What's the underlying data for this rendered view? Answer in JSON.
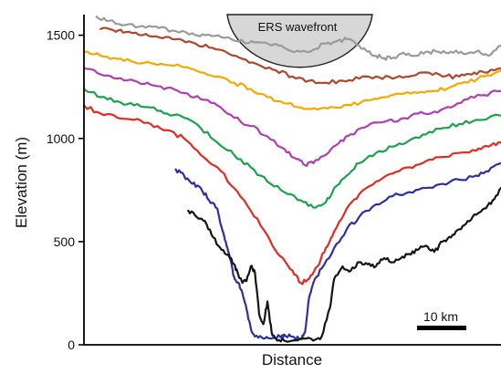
{
  "chart_data": {
    "type": "line",
    "title": "",
    "xlabel": "Distance",
    "ylabel": "Elevation (m)",
    "yticks": [
      {
        "value": 0,
        "label": "0"
      },
      {
        "value": 500,
        "label": "500"
      },
      {
        "value": 1000,
        "label": "1000"
      },
      {
        "value": 1500,
        "label": "1500"
      }
    ],
    "ylim": [
      0,
      1600
    ],
    "xlim": [
      0,
      100
    ],
    "x_tick_labels": [],
    "grid": false,
    "legend": "none",
    "annotations": {
      "wavefront_label": "ERS wavefront",
      "scale_bar_label": "10 km",
      "scale_bar_km": 10
    },
    "series": [
      {
        "color": "#9a9a9a",
        "points": [
          [
            3,
            1590
          ],
          [
            6,
            1570
          ],
          [
            10,
            1550
          ],
          [
            14,
            1545
          ],
          [
            18,
            1535
          ],
          [
            22,
            1520
          ],
          [
            26,
            1510
          ],
          [
            29,
            1500
          ],
          [
            33,
            1490
          ],
          [
            37,
            1470
          ],
          [
            41,
            1465
          ],
          [
            45,
            1450
          ],
          [
            48,
            1440
          ],
          [
            52,
            1420
          ],
          [
            55,
            1430
          ],
          [
            58,
            1460
          ],
          [
            61,
            1475
          ],
          [
            63,
            1480
          ],
          [
            66,
            1450
          ],
          [
            68,
            1420
          ],
          [
            70,
            1400
          ],
          [
            72,
            1390
          ],
          [
            74,
            1390
          ],
          [
            76,
            1410
          ],
          [
            79,
            1400
          ],
          [
            82,
            1420
          ],
          [
            85,
            1420
          ],
          [
            88,
            1420
          ],
          [
            91,
            1410
          ],
          [
            94,
            1420
          ],
          [
            97,
            1400
          ],
          [
            100,
            1450
          ]
        ]
      },
      {
        "color": "#b0462a",
        "points": [
          [
            4,
            1530
          ],
          [
            7,
            1525
          ],
          [
            10,
            1515
          ],
          [
            14,
            1500
          ],
          [
            18,
            1490
          ],
          [
            22,
            1480
          ],
          [
            26,
            1465
          ],
          [
            30,
            1440
          ],
          [
            34,
            1420
          ],
          [
            38,
            1385
          ],
          [
            42,
            1355
          ],
          [
            46,
            1330
          ],
          [
            50,
            1300
          ],
          [
            54,
            1280
          ],
          [
            58,
            1270
          ],
          [
            62,
            1280
          ],
          [
            66,
            1290
          ],
          [
            70,
            1300
          ],
          [
            74,
            1290
          ],
          [
            78,
            1300
          ],
          [
            82,
            1320
          ],
          [
            86,
            1300
          ],
          [
            90,
            1300
          ],
          [
            93,
            1310
          ],
          [
            96,
            1320
          ],
          [
            100,
            1340
          ]
        ]
      },
      {
        "color": "#f5a800",
        "points": [
          [
            0,
            1420
          ],
          [
            4,
            1400
          ],
          [
            8,
            1385
          ],
          [
            12,
            1370
          ],
          [
            16,
            1365
          ],
          [
            20,
            1355
          ],
          [
            24,
            1345
          ],
          [
            28,
            1320
          ],
          [
            32,
            1300
          ],
          [
            36,
            1270
          ],
          [
            40,
            1240
          ],
          [
            44,
            1200
          ],
          [
            48,
            1170
          ],
          [
            52,
            1150
          ],
          [
            56,
            1140
          ],
          [
            60,
            1150
          ],
          [
            64,
            1160
          ],
          [
            68,
            1185
          ],
          [
            72,
            1200
          ],
          [
            76,
            1215
          ],
          [
            80,
            1220
          ],
          [
            84,
            1230
          ],
          [
            88,
            1250
          ],
          [
            92,
            1270
          ],
          [
            96,
            1300
          ],
          [
            100,
            1330
          ]
        ]
      },
      {
        "color": "#b13db2",
        "points": [
          [
            0,
            1340
          ],
          [
            4,
            1310
          ],
          [
            8,
            1290
          ],
          [
            12,
            1280
          ],
          [
            16,
            1260
          ],
          [
            20,
            1245
          ],
          [
            24,
            1220
          ],
          [
            28,
            1190
          ],
          [
            32,
            1160
          ],
          [
            36,
            1100
          ],
          [
            40,
            1060
          ],
          [
            44,
            1010
          ],
          [
            48,
            950
          ],
          [
            51,
            900
          ],
          [
            53,
            870
          ],
          [
            55,
            880
          ],
          [
            58,
            920
          ],
          [
            61,
            975
          ],
          [
            64,
            1020
          ],
          [
            68,
            1060
          ],
          [
            72,
            1080
          ],
          [
            76,
            1095
          ],
          [
            80,
            1120
          ],
          [
            84,
            1130
          ],
          [
            88,
            1150
          ],
          [
            92,
            1190
          ],
          [
            96,
            1210
          ],
          [
            100,
            1230
          ]
        ]
      },
      {
        "color": "#1aa34a",
        "points": [
          [
            0,
            1240
          ],
          [
            4,
            1200
          ],
          [
            8,
            1180
          ],
          [
            12,
            1160
          ],
          [
            16,
            1150
          ],
          [
            20,
            1120
          ],
          [
            24,
            1100
          ],
          [
            28,
            1050
          ],
          [
            32,
            980
          ],
          [
            36,
            920
          ],
          [
            40,
            860
          ],
          [
            44,
            790
          ],
          [
            48,
            740
          ],
          [
            52,
            700
          ],
          [
            55,
            665
          ],
          [
            58,
            690
          ],
          [
            60,
            760
          ],
          [
            63,
            820
          ],
          [
            66,
            880
          ],
          [
            70,
            930
          ],
          [
            74,
            960
          ],
          [
            78,
            990
          ],
          [
            82,
            1020
          ],
          [
            86,
            1050
          ],
          [
            90,
            1070
          ],
          [
            94,
            1090
          ],
          [
            100,
            1110
          ]
        ]
      },
      {
        "color": "#e52a1f",
        "points": [
          [
            0,
            1160
          ],
          [
            4,
            1120
          ],
          [
            8,
            1100
          ],
          [
            12,
            1090
          ],
          [
            16,
            1070
          ],
          [
            20,
            1040
          ],
          [
            24,
            1000
          ],
          [
            28,
            920
          ],
          [
            32,
            860
          ],
          [
            36,
            760
          ],
          [
            40,
            650
          ],
          [
            44,
            530
          ],
          [
            47,
            430
          ],
          [
            50,
            360
          ],
          [
            52,
            300
          ],
          [
            54,
            320
          ],
          [
            56,
            380
          ],
          [
            58,
            470
          ],
          [
            60,
            550
          ],
          [
            63,
            660
          ],
          [
            66,
            730
          ],
          [
            70,
            790
          ],
          [
            74,
            830
          ],
          [
            78,
            860
          ],
          [
            82,
            890
          ],
          [
            86,
            910
          ],
          [
            90,
            930
          ],
          [
            94,
            940
          ],
          [
            97,
            960
          ],
          [
            100,
            980
          ]
        ]
      },
      {
        "color": "#2e2ea8",
        "points": [
          [
            22,
            850
          ],
          [
            24,
            820
          ],
          [
            26,
            780
          ],
          [
            28,
            760
          ],
          [
            30,
            700
          ],
          [
            32,
            660
          ],
          [
            33,
            570
          ],
          [
            34,
            500
          ],
          [
            35,
            420
          ],
          [
            36,
            330
          ],
          [
            37,
            300
          ],
          [
            38,
            250
          ],
          [
            39,
            170
          ],
          [
            40,
            80
          ],
          [
            41,
            40
          ],
          [
            43,
            30
          ],
          [
            45,
            30
          ],
          [
            47,
            40
          ],
          [
            48,
            50
          ],
          [
            50,
            40
          ],
          [
            52,
            30
          ],
          [
            53,
            60
          ],
          [
            54,
            230
          ],
          [
            55,
            300
          ],
          [
            57,
            370
          ],
          [
            60,
            470
          ],
          [
            63,
            560
          ],
          [
            66,
            620
          ],
          [
            70,
            680
          ],
          [
            74,
            720
          ],
          [
            78,
            740
          ],
          [
            82,
            760
          ],
          [
            86,
            780
          ],
          [
            90,
            800
          ],
          [
            94,
            820
          ],
          [
            97,
            840
          ],
          [
            100,
            880
          ]
        ]
      },
      {
        "color": "#141414",
        "points": [
          [
            25,
            650
          ],
          [
            27,
            620
          ],
          [
            29,
            600
          ],
          [
            31,
            520
          ],
          [
            33,
            460
          ],
          [
            35,
            420
          ],
          [
            36,
            390
          ],
          [
            37,
            340
          ],
          [
            38,
            300
          ],
          [
            39,
            310
          ],
          [
            40,
            380
          ],
          [
            41,
            350
          ],
          [
            42,
            150
          ],
          [
            43,
            100
          ],
          [
            44,
            210
          ],
          [
            45,
            60
          ],
          [
            46,
            30
          ],
          [
            48,
            20
          ],
          [
            52,
            30
          ],
          [
            55,
            20
          ],
          [
            57,
            40
          ],
          [
            59,
            180
          ],
          [
            60,
            320
          ],
          [
            62,
            380
          ],
          [
            64,
            360
          ],
          [
            66,
            400
          ],
          [
            68,
            390
          ],
          [
            70,
            380
          ],
          [
            72,
            420
          ],
          [
            74,
            400
          ],
          [
            76,
            420
          ],
          [
            78,
            440
          ],
          [
            80,
            460
          ],
          [
            82,
            480
          ],
          [
            84,
            450
          ],
          [
            86,
            500
          ],
          [
            88,
            520
          ],
          [
            90,
            560
          ],
          [
            92,
            600
          ],
          [
            94,
            630
          ],
          [
            96,
            660
          ],
          [
            98,
            700
          ],
          [
            100,
            760
          ]
        ]
      }
    ]
  }
}
